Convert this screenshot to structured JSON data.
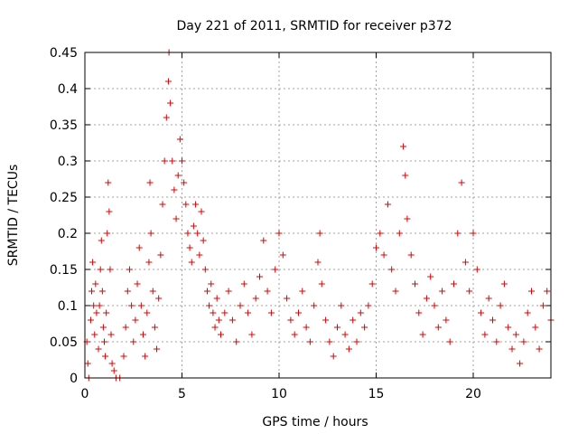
{
  "chart_data": {
    "type": "scatter",
    "title": "Day 221 of 2011, SRMTID for receiver p372",
    "xlabel": "GPS time / hours",
    "ylabel": "SRMTID / TECUs",
    "xlim": [
      0,
      24
    ],
    "ylim": [
      0,
      0.45
    ],
    "xticks": [
      0,
      5,
      10,
      15,
      20
    ],
    "xtick_labels": [
      "0",
      "5",
      "10",
      "15",
      "20"
    ],
    "yticks": [
      0,
      0.05,
      0.1,
      0.15,
      0.2,
      0.25,
      0.3,
      0.35,
      0.4,
      0.45
    ],
    "ytick_labels": [
      "0",
      "0.05",
      "0.1",
      "0.15",
      "0.2",
      "0.25",
      "0.3",
      "0.35",
      "0.4",
      "0.45"
    ],
    "grid": true,
    "marker": "+",
    "color": "#e00000",
    "series": [
      {
        "points": [
          [
            0.1,
            0.05
          ],
          [
            0.15,
            0.02
          ],
          [
            0.2,
            0.0
          ],
          [
            0.3,
            0.08
          ],
          [
            0.35,
            0.12
          ],
          [
            0.4,
            0.16
          ],
          [
            0.45,
            0.1
          ],
          [
            0.5,
            0.06
          ],
          [
            0.55,
            0.13
          ],
          [
            0.6,
            0.09
          ],
          [
            0.7,
            0.04
          ],
          [
            0.75,
            0.1
          ],
          [
            0.8,
            0.15
          ],
          [
            0.85,
            0.19
          ],
          [
            0.9,
            0.12
          ],
          [
            0.95,
            0.07
          ],
          [
            1.0,
            0.05
          ],
          [
            1.05,
            0.03
          ],
          [
            1.1,
            0.09
          ],
          [
            1.15,
            0.2
          ],
          [
            1.2,
            0.27
          ],
          [
            1.25,
            0.23
          ],
          [
            1.3,
            0.15
          ],
          [
            1.35,
            0.06
          ],
          [
            1.4,
            0.02
          ],
          [
            1.5,
            0.01
          ],
          [
            1.6,
            0.0
          ],
          [
            1.8,
            0.0
          ],
          [
            2.0,
            0.03
          ],
          [
            2.1,
            0.07
          ],
          [
            2.2,
            0.12
          ],
          [
            2.3,
            0.15
          ],
          [
            2.4,
            0.1
          ],
          [
            2.5,
            0.05
          ],
          [
            2.6,
            0.08
          ],
          [
            2.7,
            0.13
          ],
          [
            2.8,
            0.18
          ],
          [
            2.9,
            0.1
          ],
          [
            3.0,
            0.06
          ],
          [
            3.1,
            0.03
          ],
          [
            3.2,
            0.09
          ],
          [
            3.3,
            0.16
          ],
          [
            3.35,
            0.27
          ],
          [
            3.4,
            0.2
          ],
          [
            3.5,
            0.12
          ],
          [
            3.6,
            0.07
          ],
          [
            3.7,
            0.04
          ],
          [
            3.8,
            0.11
          ],
          [
            3.9,
            0.17
          ],
          [
            4.0,
            0.24
          ],
          [
            4.1,
            0.3
          ],
          [
            4.2,
            0.36
          ],
          [
            4.3,
            0.41
          ],
          [
            4.33,
            0.45
          ],
          [
            4.4,
            0.38
          ],
          [
            4.5,
            0.3
          ],
          [
            4.6,
            0.26
          ],
          [
            4.7,
            0.22
          ],
          [
            4.8,
            0.28
          ],
          [
            4.9,
            0.33
          ],
          [
            5.0,
            0.3
          ],
          [
            5.1,
            0.27
          ],
          [
            5.2,
            0.24
          ],
          [
            5.3,
            0.2
          ],
          [
            5.4,
            0.18
          ],
          [
            5.5,
            0.16
          ],
          [
            5.6,
            0.21
          ],
          [
            5.7,
            0.24
          ],
          [
            5.8,
            0.2
          ],
          [
            5.9,
            0.17
          ],
          [
            6.0,
            0.23
          ],
          [
            6.1,
            0.19
          ],
          [
            6.2,
            0.15
          ],
          [
            6.3,
            0.12
          ],
          [
            6.4,
            0.1
          ],
          [
            6.5,
            0.13
          ],
          [
            6.6,
            0.09
          ],
          [
            6.7,
            0.07
          ],
          [
            6.8,
            0.11
          ],
          [
            6.9,
            0.08
          ],
          [
            7.0,
            0.06
          ],
          [
            7.2,
            0.09
          ],
          [
            7.4,
            0.12
          ],
          [
            7.6,
            0.08
          ],
          [
            7.8,
            0.05
          ],
          [
            8.0,
            0.1
          ],
          [
            8.2,
            0.13
          ],
          [
            8.4,
            0.09
          ],
          [
            8.6,
            0.06
          ],
          [
            8.8,
            0.11
          ],
          [
            9.0,
            0.14
          ],
          [
            9.2,
            0.19
          ],
          [
            9.4,
            0.12
          ],
          [
            9.6,
            0.09
          ],
          [
            9.8,
            0.15
          ],
          [
            10.0,
            0.2
          ],
          [
            10.2,
            0.17
          ],
          [
            10.4,
            0.11
          ],
          [
            10.6,
            0.08
          ],
          [
            10.8,
            0.06
          ],
          [
            11.0,
            0.09
          ],
          [
            11.2,
            0.12
          ],
          [
            11.4,
            0.07
          ],
          [
            11.6,
            0.05
          ],
          [
            11.8,
            0.1
          ],
          [
            12.0,
            0.16
          ],
          [
            12.1,
            0.2
          ],
          [
            12.2,
            0.13
          ],
          [
            12.4,
            0.08
          ],
          [
            12.6,
            0.05
          ],
          [
            12.8,
            0.03
          ],
          [
            13.0,
            0.07
          ],
          [
            13.2,
            0.1
          ],
          [
            13.4,
            0.06
          ],
          [
            13.6,
            0.04
          ],
          [
            13.8,
            0.08
          ],
          [
            14.0,
            0.05
          ],
          [
            14.2,
            0.09
          ],
          [
            14.4,
            0.07
          ],
          [
            14.6,
            0.1
          ],
          [
            14.8,
            0.13
          ],
          [
            15.0,
            0.18
          ],
          [
            15.2,
            0.2
          ],
          [
            15.4,
            0.17
          ],
          [
            15.6,
            0.24
          ],
          [
            15.8,
            0.15
          ],
          [
            16.0,
            0.12
          ],
          [
            16.2,
            0.2
          ],
          [
            16.4,
            0.32
          ],
          [
            16.5,
            0.28
          ],
          [
            16.6,
            0.22
          ],
          [
            16.8,
            0.17
          ],
          [
            17.0,
            0.13
          ],
          [
            17.2,
            0.09
          ],
          [
            17.4,
            0.06
          ],
          [
            17.6,
            0.11
          ],
          [
            17.8,
            0.14
          ],
          [
            18.0,
            0.1
          ],
          [
            18.2,
            0.07
          ],
          [
            18.4,
            0.12
          ],
          [
            18.6,
            0.08
          ],
          [
            18.8,
            0.05
          ],
          [
            19.0,
            0.13
          ],
          [
            19.2,
            0.2
          ],
          [
            19.4,
            0.27
          ],
          [
            19.6,
            0.16
          ],
          [
            19.8,
            0.12
          ],
          [
            20.0,
            0.2
          ],
          [
            20.2,
            0.15
          ],
          [
            20.4,
            0.09
          ],
          [
            20.6,
            0.06
          ],
          [
            20.8,
            0.11
          ],
          [
            21.0,
            0.08
          ],
          [
            21.2,
            0.05
          ],
          [
            21.4,
            0.1
          ],
          [
            21.6,
            0.13
          ],
          [
            21.8,
            0.07
          ],
          [
            22.0,
            0.04
          ],
          [
            22.2,
            0.06
          ],
          [
            22.4,
            0.02
          ],
          [
            22.6,
            0.05
          ],
          [
            22.8,
            0.09
          ],
          [
            23.0,
            0.12
          ],
          [
            23.2,
            0.07
          ],
          [
            23.4,
            0.04
          ],
          [
            23.6,
            0.1
          ],
          [
            23.8,
            0.12
          ],
          [
            24.0,
            0.08
          ]
        ]
      }
    ]
  }
}
